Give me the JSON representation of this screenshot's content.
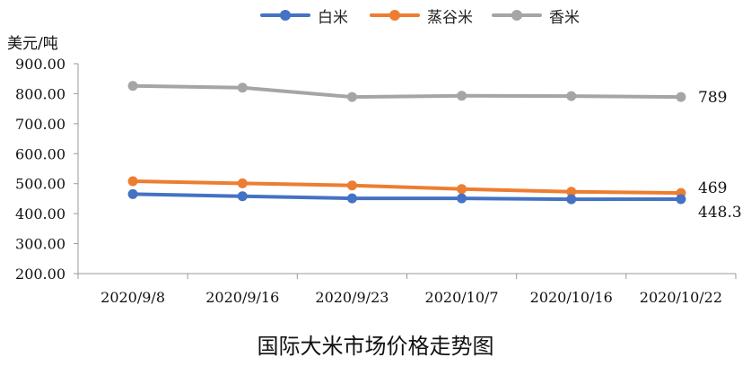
{
  "legend": [
    {
      "name": "白米",
      "color": "#4472C4"
    },
    {
      "name": "蒸谷米",
      "color": "#ED7D31"
    },
    {
      "name": "香米",
      "color": "#A5A5A5"
    }
  ],
  "unit_label": "美元/吨",
  "bottom_title": "国际大米市场价格走势图",
  "chart_data": {
    "type": "line",
    "title": "国际大米市场价格走势图",
    "ylabel": "美元/吨",
    "xlabel": "",
    "x": [
      "2020/9/8",
      "2020/9/16",
      "2020/9/23",
      "2020/10/7",
      "2020/10/16",
      "2020/10/22"
    ],
    "ylim": [
      200,
      900
    ],
    "yticks": [
      "200.00",
      "300.00",
      "400.00",
      "500.00",
      "600.00",
      "700.00",
      "800.00",
      "900.00"
    ],
    "grid": false,
    "legend_position": "top",
    "series": [
      {
        "name": "白米",
        "color": "#4472C4",
        "values": [
          465,
          458,
          451,
          451,
          448,
          448.3
        ],
        "end_label": "448.3"
      },
      {
        "name": "蒸谷米",
        "color": "#ED7D31",
        "values": [
          508,
          501,
          494,
          482,
          473,
          469
        ],
        "end_label": "469"
      },
      {
        "name": "香米",
        "color": "#A5A5A5",
        "values": [
          826,
          820,
          789,
          793,
          792,
          789
        ],
        "end_label": "789"
      }
    ]
  }
}
